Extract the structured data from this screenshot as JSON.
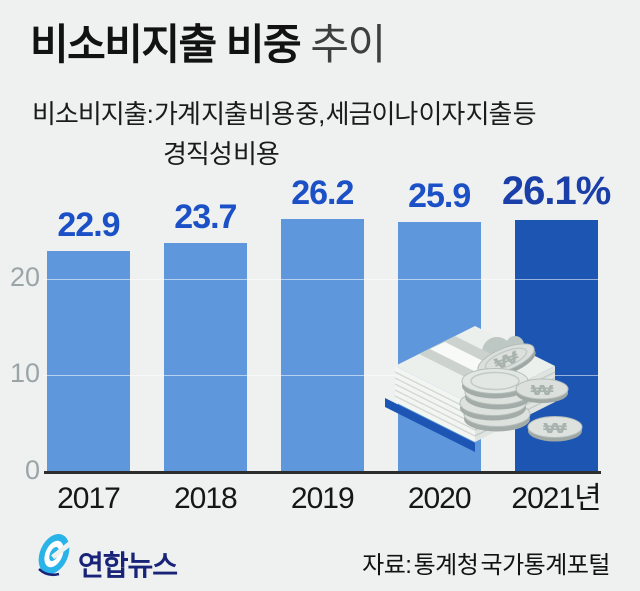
{
  "page": {
    "background": "#eef1f0"
  },
  "header": {
    "title_main": "비소비지출 비중",
    "title_sub": " 추이",
    "description_line1": "비소비지출: 가계 지출 비용 중, 세금이나 이자 지출 등",
    "description_line2": "경직성 비용"
  },
  "chart_data": {
    "type": "bar",
    "title": "비소비지출 비중 추이",
    "categories": [
      "2017",
      "2018",
      "2019",
      "2020",
      "2021년"
    ],
    "values": [
      22.9,
      23.7,
      26.2,
      25.9,
      26.1
    ],
    "value_labels": [
      "22.9",
      "23.7",
      "26.2",
      "25.9",
      "26.1%"
    ],
    "unit": "%",
    "xlabel": "",
    "ylabel": "",
    "yticks": [
      0,
      10,
      20
    ],
    "ylim": [
      0,
      28
    ],
    "grid": true,
    "legend": "none",
    "bar_color": "#5e97db",
    "highlight_index": 4,
    "highlight_bar_color": "#1d55b2",
    "value_label_color": "#1b50c6",
    "highlight_value_label_color": "#1b3fa8",
    "axis_color": "#2d2d2d",
    "tick_label_color": "#9ba5a7"
  },
  "illustration": {
    "name": "won-banknotes-and-coins",
    "currency_symbol": "₩"
  },
  "footer": {
    "logo_text": "연합뉴스",
    "logo_color": "#29b3e9",
    "logo_text_color": "#192478",
    "source": "자료: 통계청 국가통계포털"
  }
}
